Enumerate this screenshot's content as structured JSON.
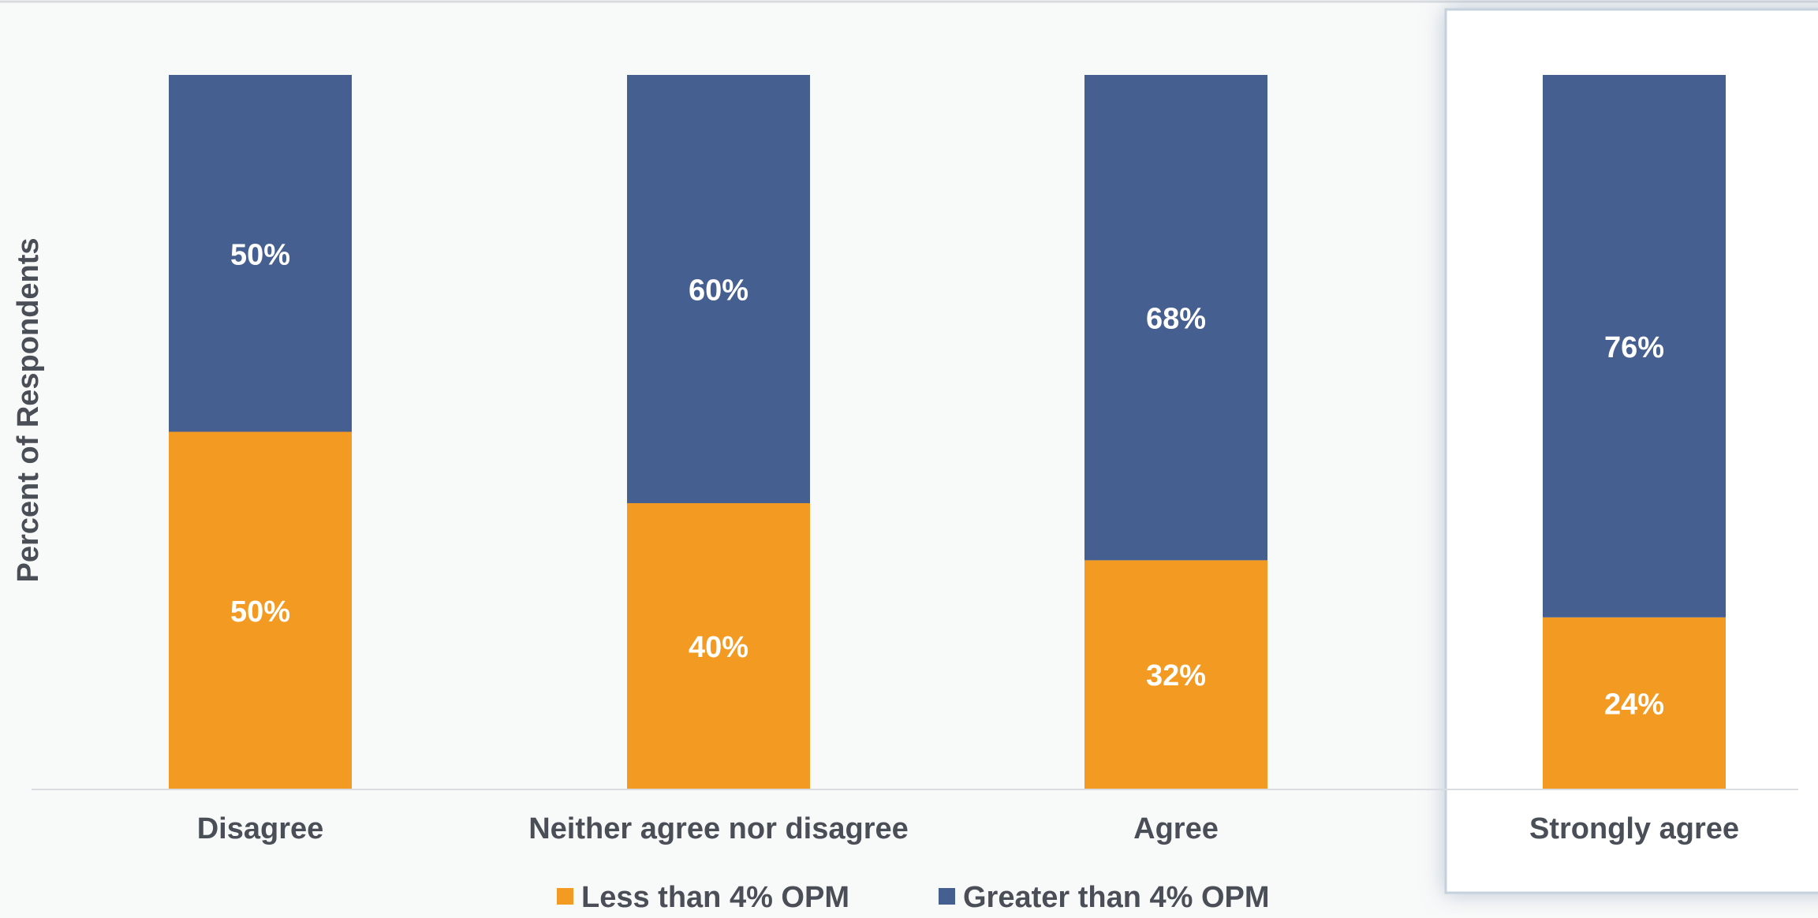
{
  "chart_data": {
    "type": "bar",
    "stacked": true,
    "percent_stacked": true,
    "categories": [
      "Disagree",
      "Neither agree nor disagree",
      "Agree",
      "Strongly agree"
    ],
    "series": [
      {
        "name": "Less than 4% OPM",
        "values": [
          50,
          40,
          32,
          24
        ],
        "labels": [
          "50%",
          "40%",
          "32%",
          "24%"
        ],
        "color": "#f39a22"
      },
      {
        "name": "Greater than 4% OPM",
        "values": [
          50,
          60,
          68,
          76
        ],
        "labels": [
          "50%",
          "60%",
          "68%",
          "76%"
        ],
        "color": "#465f91"
      }
    ],
    "ylabel": "Percent of Respondents",
    "ylim": [
      0,
      100
    ],
    "grid": false,
    "legend": "bottom",
    "highlighted_category": "Strongly agree",
    "colors": {
      "background": "#f8f9f9",
      "axis": "#d9dde2",
      "label_text": "#ffffff",
      "category_text": "#4a4f57"
    }
  }
}
